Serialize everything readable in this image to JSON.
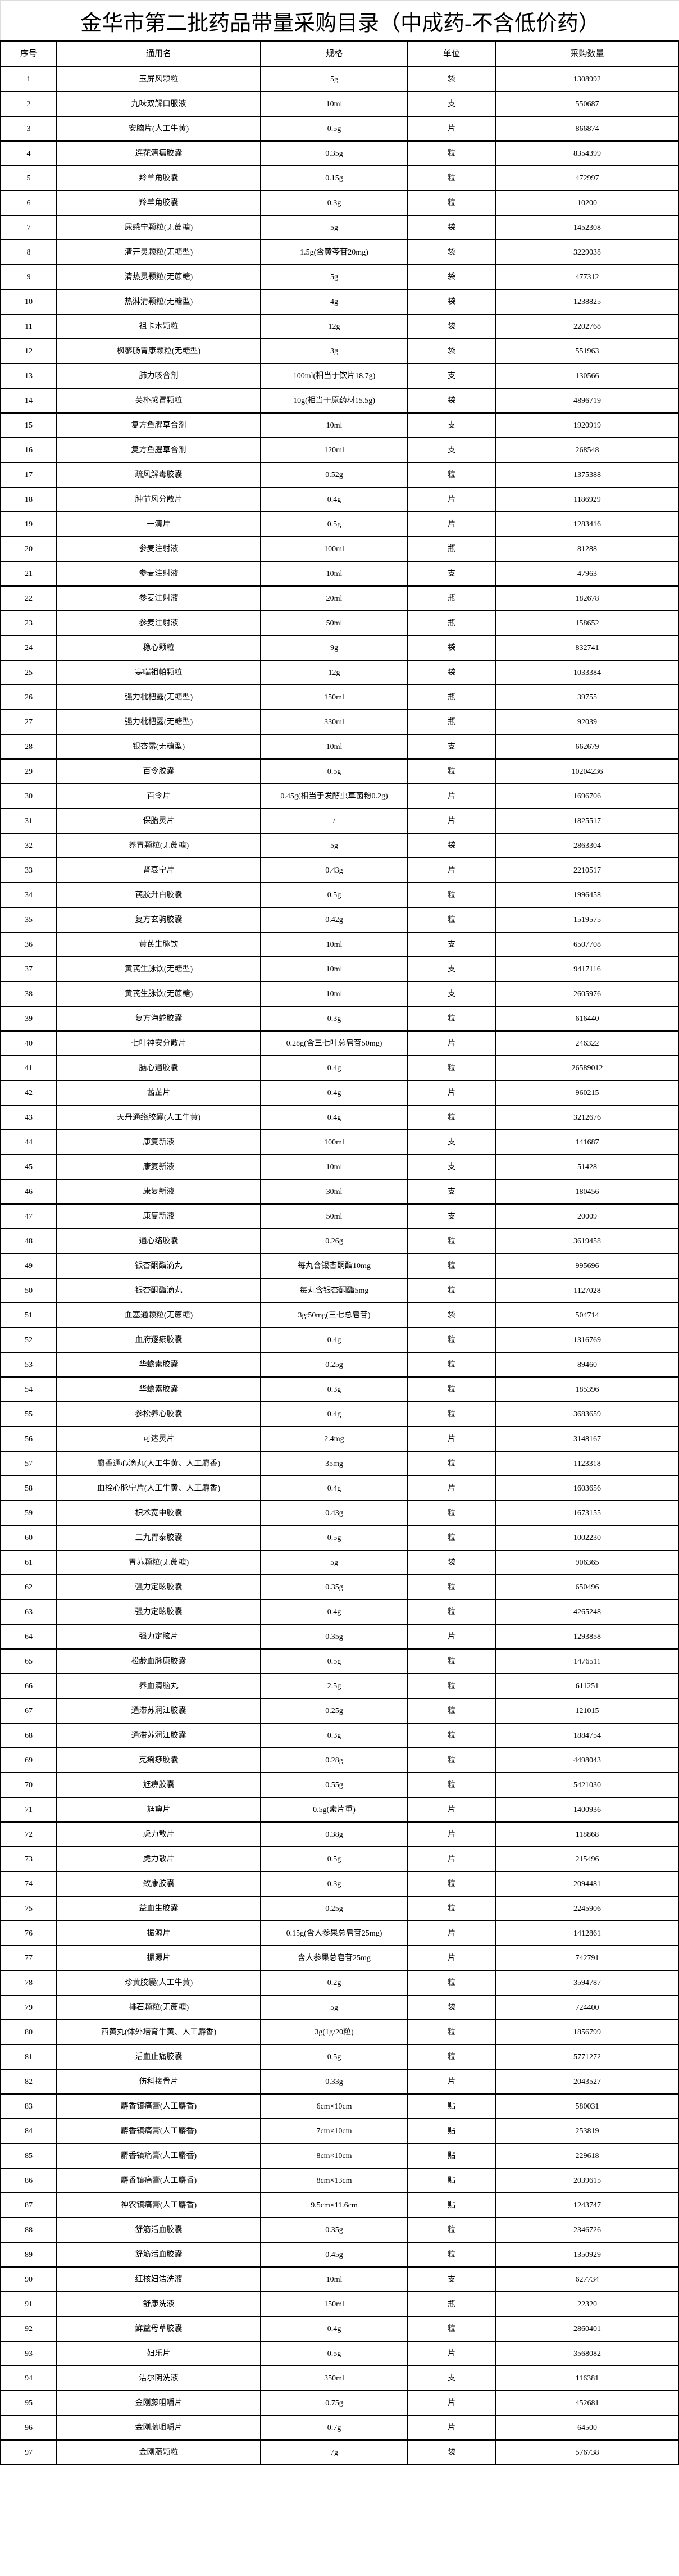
{
  "title": "金华市第二批药品带量采购目录（中成药-不含低价药）",
  "table": {
    "headers": [
      "序号",
      "通用名",
      "规格",
      "单位",
      "采购数量"
    ],
    "rows": [
      [
        "1",
        "玉屏风颗粒",
        "5g",
        "袋",
        "1308992"
      ],
      [
        "2",
        "九味双解口服液",
        "10ml",
        "支",
        "550687"
      ],
      [
        "3",
        "安脑片(人工牛黄)",
        "0.5g",
        "片",
        "866874"
      ],
      [
        "4",
        "连花清瘟胶囊",
        "0.35g",
        "粒",
        "8354399"
      ],
      [
        "5",
        "羚羊角胶囊",
        "0.15g",
        "粒",
        "472997"
      ],
      [
        "6",
        "羚羊角胶囊",
        "0.3g",
        "粒",
        "10200"
      ],
      [
        "7",
        "尿感宁颗粒(无蔗糖)",
        "5g",
        "袋",
        "1452308"
      ],
      [
        "8",
        "清开灵颗粒(无糖型)",
        "1.5g(含黄芩苷20mg)",
        "袋",
        "3229038"
      ],
      [
        "9",
        "清热灵颗粒(无蔗糖)",
        "5g",
        "袋",
        "477312"
      ],
      [
        "10",
        "热淋清颗粒(无糖型)",
        "4g",
        "袋",
        "1238825"
      ],
      [
        "11",
        "祖卡木颗粒",
        "12g",
        "袋",
        "2202768"
      ],
      [
        "12",
        "枫蓼肠胃康颗粒(无糖型)",
        "3g",
        "袋",
        "551963"
      ],
      [
        "13",
        "肺力咳合剂",
        "100ml(相当于饮片18.7g)",
        "支",
        "130566"
      ],
      [
        "14",
        "芙朴感冒颗粒",
        "10g(相当于原药材15.5g)",
        "袋",
        "4896719"
      ],
      [
        "15",
        "复方鱼腥草合剂",
        "10ml",
        "支",
        "1920919"
      ],
      [
        "16",
        "复方鱼腥草合剂",
        "120ml",
        "支",
        "268548"
      ],
      [
        "17",
        "疏风解毒胶囊",
        "0.52g",
        "粒",
        "1375388"
      ],
      [
        "18",
        "肿节风分散片",
        "0.4g",
        "片",
        "1186929"
      ],
      [
        "19",
        "一清片",
        "0.5g",
        "片",
        "1283416"
      ],
      [
        "20",
        "参麦注射液",
        "100ml",
        "瓶",
        "81288"
      ],
      [
        "21",
        "参麦注射液",
        "10ml",
        "支",
        "47963"
      ],
      [
        "22",
        "参麦注射液",
        "20ml",
        "瓶",
        "182678"
      ],
      [
        "23",
        "参麦注射液",
        "50ml",
        "瓶",
        "158652"
      ],
      [
        "24",
        "稳心颗粒",
        "9g",
        "袋",
        "832741"
      ],
      [
        "25",
        "寒喘祖帕颗粒",
        "12g",
        "袋",
        "1033384"
      ],
      [
        "26",
        "强力枇杷露(无糖型)",
        "150ml",
        "瓶",
        "39755"
      ],
      [
        "27",
        "强力枇杷露(无糖型)",
        "330ml",
        "瓶",
        "92039"
      ],
      [
        "28",
        "银杏露(无糖型)",
        "10ml",
        "支",
        "662679"
      ],
      [
        "29",
        "百令胶囊",
        "0.5g",
        "粒",
        "10204236"
      ],
      [
        "30",
        "百令片",
        "0.45g(相当于发酵虫草菌粉0.2g)",
        "片",
        "1696706"
      ],
      [
        "31",
        "保胎灵片",
        "/",
        "片",
        "1825517"
      ],
      [
        "32",
        "养胃颗粒(无蔗糖)",
        "5g",
        "袋",
        "2863304"
      ],
      [
        "33",
        "肾衰宁片",
        "0.43g",
        "片",
        "2210517"
      ],
      [
        "34",
        "芪胶升白胶囊",
        "0.5g",
        "粒",
        "1996458"
      ],
      [
        "35",
        "复方玄驹胶囊",
        "0.42g",
        "粒",
        "1519575"
      ],
      [
        "36",
        "黄芪生脉饮",
        "10ml",
        "支",
        "6507708"
      ],
      [
        "37",
        "黄芪生脉饮(无糖型)",
        "10ml",
        "支",
        "9417116"
      ],
      [
        "38",
        "黄芪生脉饮(无蔗糖)",
        "10ml",
        "支",
        "2605976"
      ],
      [
        "39",
        "复方海蛇胶囊",
        "0.3g",
        "粒",
        "616440"
      ],
      [
        "40",
        "七叶神安分散片",
        "0.28g(含三七叶总皂苷50mg)",
        "片",
        "246322"
      ],
      [
        "41",
        "脑心通胶囊",
        "0.4g",
        "粒",
        "26589012"
      ],
      [
        "42",
        "茜芷片",
        "0.4g",
        "片",
        "960215"
      ],
      [
        "43",
        "天丹通络胶囊(人工牛黄)",
        "0.4g",
        "粒",
        "3212676"
      ],
      [
        "44",
        "康复新液",
        "100ml",
        "支",
        "141687"
      ],
      [
        "45",
        "康复新液",
        "10ml",
        "支",
        "51428"
      ],
      [
        "46",
        "康复新液",
        "30ml",
        "支",
        "180456"
      ],
      [
        "47",
        "康复新液",
        "50ml",
        "支",
        "20009"
      ],
      [
        "48",
        "通心络胶囊",
        "0.26g",
        "粒",
        "3619458"
      ],
      [
        "49",
        "银杏酮酯滴丸",
        "每丸含银杏酮酯10mg",
        "粒",
        "995696"
      ],
      [
        "50",
        "银杏酮酯滴丸",
        "每丸含银杏酮酯5mg",
        "粒",
        "1127028"
      ],
      [
        "51",
        "血塞通颗粒(无蔗糖)",
        "3g:50mg(三七总皂苷)",
        "袋",
        "504714"
      ],
      [
        "52",
        "血府逐瘀胶囊",
        "0.4g",
        "粒",
        "1316769"
      ],
      [
        "53",
        "华蟾素胶囊",
        "0.25g",
        "粒",
        "89460"
      ],
      [
        "54",
        "华蟾素胶囊",
        "0.3g",
        "粒",
        "185396"
      ],
      [
        "55",
        "参松养心胶囊",
        "0.4g",
        "粒",
        "3683659"
      ],
      [
        "56",
        "可达灵片",
        "2.4mg",
        "片",
        "3148167"
      ],
      [
        "57",
        "麝香通心滴丸(人工牛黄、人工麝香)",
        "35mg",
        "粒",
        "1123318"
      ],
      [
        "58",
        "血栓心脉宁片(人工牛黄、人工麝香)",
        "0.4g",
        "片",
        "1603656"
      ],
      [
        "59",
        "枳术宽中胶囊",
        "0.43g",
        "粒",
        "1673155"
      ],
      [
        "60",
        "三九胃泰胶囊",
        "0.5g",
        "粒",
        "1002230"
      ],
      [
        "61",
        "胃苏颗粒(无蔗糖)",
        "5g",
        "袋",
        "906365"
      ],
      [
        "62",
        "强力定眩胶囊",
        "0.35g",
        "粒",
        "650496"
      ],
      [
        "63",
        "强力定眩胶囊",
        "0.4g",
        "粒",
        "4265248"
      ],
      [
        "64",
        "强力定眩片",
        "0.35g",
        "片",
        "1293858"
      ],
      [
        "65",
        "松龄血脉康胶囊",
        "0.5g",
        "粒",
        "1476511"
      ],
      [
        "66",
        "养血清脑丸",
        "2.5g",
        "粒",
        "611251"
      ],
      [
        "67",
        "通滞苏润江胶囊",
        "0.25g",
        "粒",
        "121015"
      ],
      [
        "68",
        "通滞苏润江胶囊",
        "0.3g",
        "粒",
        "1884754"
      ],
      [
        "69",
        "克痢痧胶囊",
        "0.28g",
        "粒",
        "4498043"
      ],
      [
        "70",
        "尪痹胶囊",
        "0.55g",
        "粒",
        "5421030"
      ],
      [
        "71",
        "尪痹片",
        "0.5g(素片重)",
        "片",
        "1400936"
      ],
      [
        "72",
        "虎力散片",
        "0.38g",
        "片",
        "118868"
      ],
      [
        "73",
        "虎力散片",
        "0.5g",
        "片",
        "215496"
      ],
      [
        "74",
        "致康胶囊",
        "0.3g",
        "粒",
        "2094481"
      ],
      [
        "75",
        "益血生胶囊",
        "0.25g",
        "粒",
        "2245906"
      ],
      [
        "76",
        "振源片",
        "0.15g(含人参果总皂苷25mg)",
        "片",
        "1412861"
      ],
      [
        "77",
        "振源片",
        "含人参果总皂苷25mg",
        "片",
        "742791"
      ],
      [
        "78",
        "珍黄胶囊(人工牛黄)",
        "0.2g",
        "粒",
        "3594787"
      ],
      [
        "79",
        "排石颗粒(无蔗糖)",
        "5g",
        "袋",
        "724400"
      ],
      [
        "80",
        "西黄丸(体外培育牛黄、人工麝香)",
        "3g(1g/20粒)",
        "粒",
        "1856799"
      ],
      [
        "81",
        "活血止痛胶囊",
        "0.5g",
        "粒",
        "5771272"
      ],
      [
        "82",
        "伤科接骨片",
        "0.33g",
        "片",
        "2043527"
      ],
      [
        "83",
        "麝香镇痛膏(人工麝香)",
        "6cm×10cm",
        "贴",
        "580031"
      ],
      [
        "84",
        "麝香镇痛膏(人工麝香)",
        "7cm×10cm",
        "贴",
        "253819"
      ],
      [
        "85",
        "麝香镇痛膏(人工麝香)",
        "8cm×10cm",
        "贴",
        "229618"
      ],
      [
        "86",
        "麝香镇痛膏(人工麝香)",
        "8cm×13cm",
        "贴",
        "2039615"
      ],
      [
        "87",
        "神农镇痛膏(人工麝香)",
        "9.5cm×11.6cm",
        "贴",
        "1243747"
      ],
      [
        "88",
        "舒筋活血胶囊",
        "0.35g",
        "粒",
        "2346726"
      ],
      [
        "89",
        "舒筋活血胶囊",
        "0.45g",
        "粒",
        "1350929"
      ],
      [
        "90",
        "红核妇洁洗液",
        "10ml",
        "支",
        "627734"
      ],
      [
        "91",
        "舒康洗液",
        "150ml",
        "瓶",
        "22320"
      ],
      [
        "92",
        "鲜益母草胶囊",
        "0.4g",
        "粒",
        "2860401"
      ],
      [
        "93",
        "妇乐片",
        "0.5g",
        "片",
        "3568082"
      ],
      [
        "94",
        "洁尔阴洗液",
        "350ml",
        "支",
        "116381"
      ],
      [
        "95",
        "金刚藤咀嚼片",
        "0.75g",
        "片",
        "452681"
      ],
      [
        "96",
        "金刚藤咀嚼片",
        "0.7g",
        "片",
        "64500"
      ],
      [
        "97",
        "金刚藤颗粒",
        "7g",
        "袋",
        "576738"
      ]
    ]
  }
}
